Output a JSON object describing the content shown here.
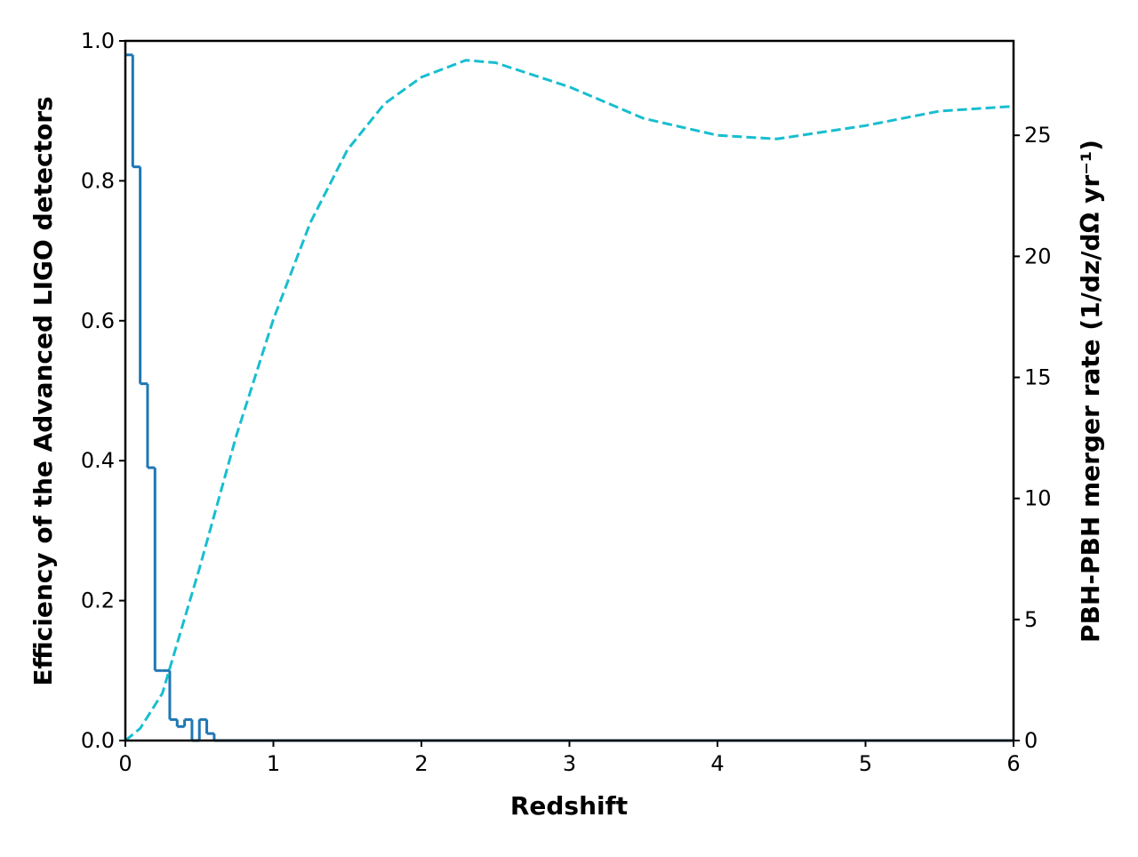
{
  "chart_data": {
    "type": "combo",
    "xlabel": "Redshift",
    "ylabel": "Efficiency of the Advanced LIGO detectors",
    "y2label": "PBH-PBH merger rate (1/dz/dΩ yr⁻¹)",
    "xlim": [
      0,
      6
    ],
    "xticks": [
      0,
      1,
      2,
      3,
      4,
      5,
      6
    ],
    "ylim": [
      0,
      1.0
    ],
    "yticks": [
      {
        "value": 0,
        "label": "0.0"
      },
      {
        "value": 0.2,
        "label": "0.2"
      },
      {
        "value": 0.4,
        "label": "0.4"
      },
      {
        "value": 0.6,
        "label": "0.6"
      },
      {
        "value": 0.8,
        "label": "0.8"
      },
      {
        "value": 1.0,
        "label": "1.0"
      }
    ],
    "y2lim": [
      0,
      28.9
    ],
    "y2ticks": [
      0,
      5,
      10,
      15,
      20,
      25
    ],
    "series": [
      {
        "type": "step",
        "color": "#1f77b4",
        "bins": [
          0,
          0.05,
          0.1,
          0.15,
          0.2,
          0.25,
          0.3,
          0.35,
          0.4,
          0.45,
          0.5,
          0.55,
          0.6,
          6
        ],
        "values": [
          0.98,
          0.82,
          0.51,
          0.39,
          0.1,
          0.1,
          0.03,
          0.02,
          0.03,
          0.0,
          0.03,
          0.01,
          0.0
        ]
      },
      {
        "type": "line",
        "axis": "y2",
        "color": "#17becf",
        "dashed": true,
        "x": [
          0,
          0.1,
          0.25,
          0.5,
          0.75,
          1.0,
          1.25,
          1.5,
          1.75,
          2.0,
          2.3,
          2.5,
          3.0,
          3.5,
          4.0,
          4.4,
          5.0,
          5.5,
          6.0
        ],
        "values": [
          0,
          0.5,
          1.95,
          7.1,
          12.6,
          17.4,
          21.4,
          24.4,
          26.3,
          27.4,
          28.1,
          28.0,
          27.0,
          25.7,
          25.0,
          24.85,
          25.4,
          26.0,
          26.2
        ]
      }
    ]
  }
}
